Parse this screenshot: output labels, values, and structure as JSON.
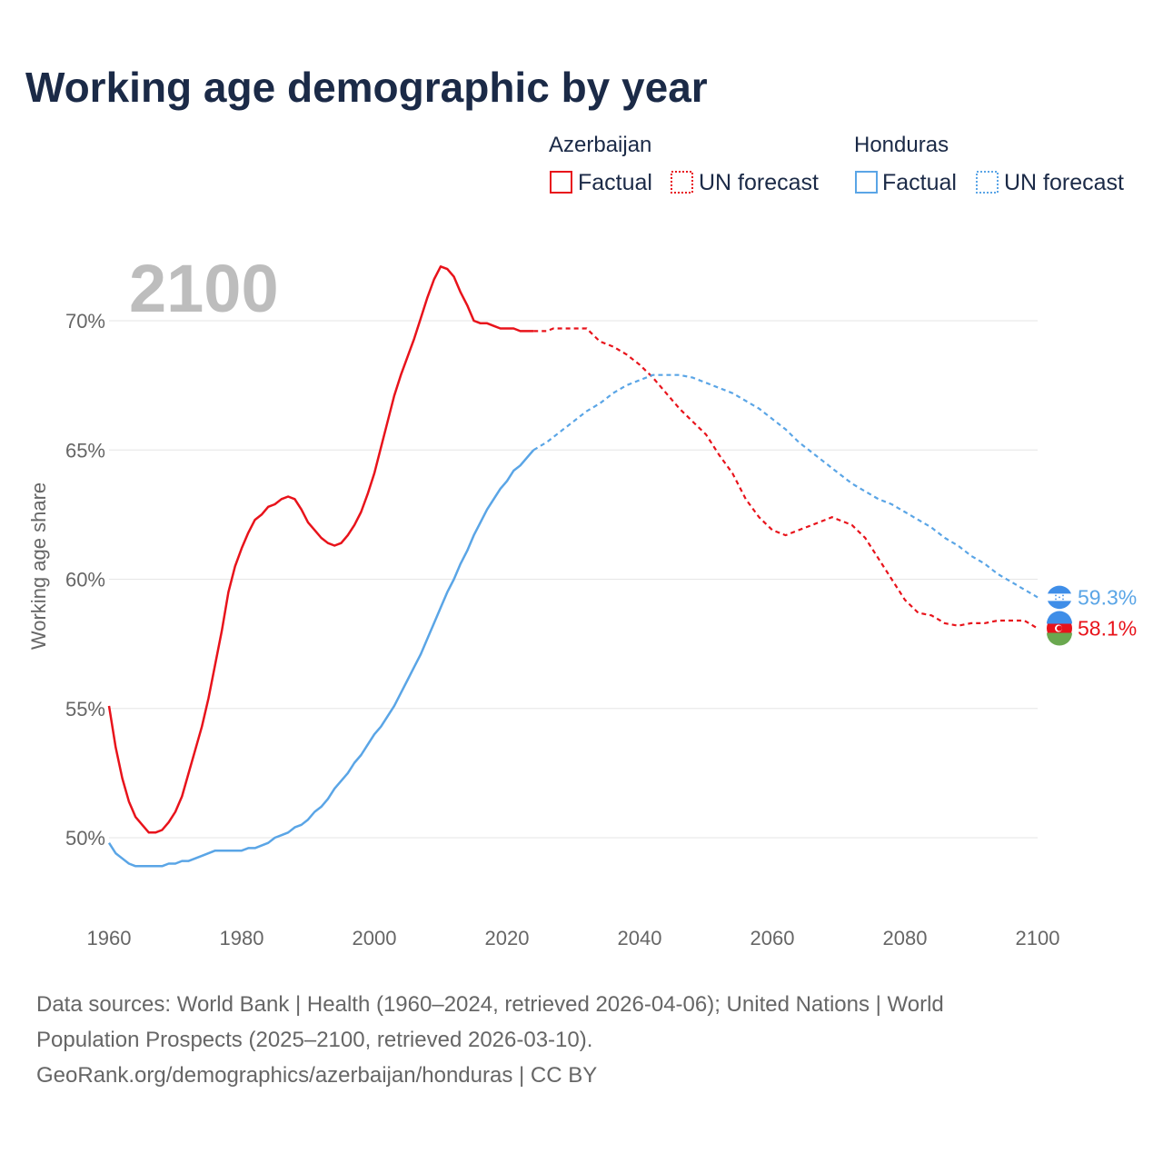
{
  "title": "Working age demographic by year",
  "year_display": "2100",
  "legend": {
    "groups": [
      {
        "name": "Azerbaijan",
        "factual_label": "Factual",
        "forecast_label": "UN forecast",
        "color": "#e8131b"
      },
      {
        "name": "Honduras",
        "factual_label": "Factual",
        "forecast_label": "UN forecast",
        "color": "#5aa5e6"
      }
    ]
  },
  "colors": {
    "azerbaijan": "#e8131b",
    "honduras": "#5aa5e6",
    "grid": "#e6e6e6",
    "axis_text": "#666666",
    "title": "#1b2a47"
  },
  "chart_data": {
    "type": "line",
    "title": "Working age demographic by year",
    "xlabel": "",
    "ylabel": "Working age share",
    "xlim": [
      1960,
      2100
    ],
    "ylim": [
      47.5,
      73
    ],
    "x_ticks": [
      1960,
      1980,
      2000,
      2020,
      2040,
      2060,
      2080,
      2100
    ],
    "y_ticks": [
      50,
      55,
      60,
      65,
      70
    ],
    "y_tick_labels": [
      "50%",
      "55%",
      "60%",
      "65%",
      "70%"
    ],
    "factual_end_year": 2024,
    "series": [
      {
        "name": "Azerbaijan",
        "color": "#e8131b",
        "end_label": "58.1%",
        "points": [
          [
            1960,
            55.1
          ],
          [
            1961,
            53.5
          ],
          [
            1962,
            52.3
          ],
          [
            1963,
            51.4
          ],
          [
            1964,
            50.8
          ],
          [
            1965,
            50.5
          ],
          [
            1966,
            50.2
          ],
          [
            1967,
            50.2
          ],
          [
            1968,
            50.3
          ],
          [
            1969,
            50.6
          ],
          [
            1970,
            51.0
          ],
          [
            1971,
            51.6
          ],
          [
            1972,
            52.5
          ],
          [
            1973,
            53.4
          ],
          [
            1974,
            54.3
          ],
          [
            1975,
            55.4
          ],
          [
            1976,
            56.7
          ],
          [
            1977,
            58.0
          ],
          [
            1978,
            59.5
          ],
          [
            1979,
            60.5
          ],
          [
            1980,
            61.2
          ],
          [
            1981,
            61.8
          ],
          [
            1982,
            62.3
          ],
          [
            1983,
            62.5
          ],
          [
            1984,
            62.8
          ],
          [
            1985,
            62.9
          ],
          [
            1986,
            63.1
          ],
          [
            1987,
            63.2
          ],
          [
            1988,
            63.1
          ],
          [
            1989,
            62.7
          ],
          [
            1990,
            62.2
          ],
          [
            1991,
            61.9
          ],
          [
            1992,
            61.6
          ],
          [
            1993,
            61.4
          ],
          [
            1994,
            61.3
          ],
          [
            1995,
            61.4
          ],
          [
            1996,
            61.7
          ],
          [
            1997,
            62.1
          ],
          [
            1998,
            62.6
          ],
          [
            1999,
            63.3
          ],
          [
            2000,
            64.1
          ],
          [
            2001,
            65.1
          ],
          [
            2002,
            66.1
          ],
          [
            2003,
            67.1
          ],
          [
            2004,
            67.9
          ],
          [
            2005,
            68.6
          ],
          [
            2006,
            69.3
          ],
          [
            2007,
            70.1
          ],
          [
            2008,
            70.9
          ],
          [
            2009,
            71.6
          ],
          [
            2010,
            72.1
          ],
          [
            2011,
            72.0
          ],
          [
            2012,
            71.7
          ],
          [
            2013,
            71.1
          ],
          [
            2014,
            70.6
          ],
          [
            2015,
            70.0
          ],
          [
            2016,
            69.9
          ],
          [
            2017,
            69.9
          ],
          [
            2018,
            69.8
          ],
          [
            2019,
            69.7
          ],
          [
            2020,
            69.7
          ],
          [
            2021,
            69.7
          ],
          [
            2022,
            69.6
          ],
          [
            2023,
            69.6
          ],
          [
            2024,
            69.6
          ],
          [
            2026,
            69.6
          ],
          [
            2027,
            69.7
          ],
          [
            2030,
            69.7
          ],
          [
            2032,
            69.7
          ],
          [
            2034,
            69.2
          ],
          [
            2036,
            69.0
          ],
          [
            2038,
            68.7
          ],
          [
            2040,
            68.3
          ],
          [
            2042,
            67.8
          ],
          [
            2044,
            67.2
          ],
          [
            2046,
            66.6
          ],
          [
            2048,
            66.1
          ],
          [
            2050,
            65.6
          ],
          [
            2052,
            64.8
          ],
          [
            2054,
            64.1
          ],
          [
            2056,
            63.1
          ],
          [
            2058,
            62.4
          ],
          [
            2060,
            61.9
          ],
          [
            2062,
            61.7
          ],
          [
            2064,
            61.9
          ],
          [
            2066,
            62.1
          ],
          [
            2068,
            62.3
          ],
          [
            2069,
            62.4
          ],
          [
            2070,
            62.3
          ],
          [
            2072,
            62.1
          ],
          [
            2074,
            61.6
          ],
          [
            2076,
            60.8
          ],
          [
            2078,
            60.0
          ],
          [
            2080,
            59.2
          ],
          [
            2082,
            58.7
          ],
          [
            2084,
            58.6
          ],
          [
            2086,
            58.3
          ],
          [
            2088,
            58.2
          ],
          [
            2090,
            58.3
          ],
          [
            2092,
            58.3
          ],
          [
            2094,
            58.4
          ],
          [
            2096,
            58.4
          ],
          [
            2098,
            58.4
          ],
          [
            2100,
            58.1
          ]
        ]
      },
      {
        "name": "Honduras",
        "color": "#5aa5e6",
        "end_label": "59.3%",
        "points": [
          [
            1960,
            49.8
          ],
          [
            1961,
            49.4
          ],
          [
            1962,
            49.2
          ],
          [
            1963,
            49.0
          ],
          [
            1964,
            48.9
          ],
          [
            1965,
            48.9
          ],
          [
            1966,
            48.9
          ],
          [
            1968,
            48.9
          ],
          [
            1969,
            49.0
          ],
          [
            1970,
            49.0
          ],
          [
            1971,
            49.1
          ],
          [
            1972,
            49.1
          ],
          [
            1974,
            49.3
          ],
          [
            1976,
            49.5
          ],
          [
            1978,
            49.5
          ],
          [
            1980,
            49.5
          ],
          [
            1981,
            49.6
          ],
          [
            1982,
            49.6
          ],
          [
            1984,
            49.8
          ],
          [
            1985,
            50.0
          ],
          [
            1986,
            50.1
          ],
          [
            1987,
            50.2
          ],
          [
            1988,
            50.4
          ],
          [
            1989,
            50.5
          ],
          [
            1990,
            50.7
          ],
          [
            1991,
            51.0
          ],
          [
            1992,
            51.2
          ],
          [
            1993,
            51.5
          ],
          [
            1994,
            51.9
          ],
          [
            1995,
            52.2
          ],
          [
            1996,
            52.5
          ],
          [
            1997,
            52.9
          ],
          [
            1998,
            53.2
          ],
          [
            1999,
            53.6
          ],
          [
            2000,
            54.0
          ],
          [
            2001,
            54.3
          ],
          [
            2002,
            54.7
          ],
          [
            2003,
            55.1
          ],
          [
            2004,
            55.6
          ],
          [
            2005,
            56.1
          ],
          [
            2006,
            56.6
          ],
          [
            2007,
            57.1
          ],
          [
            2008,
            57.7
          ],
          [
            2009,
            58.3
          ],
          [
            2010,
            58.9
          ],
          [
            2011,
            59.5
          ],
          [
            2012,
            60.0
          ],
          [
            2013,
            60.6
          ],
          [
            2014,
            61.1
          ],
          [
            2015,
            61.7
          ],
          [
            2016,
            62.2
          ],
          [
            2017,
            62.7
          ],
          [
            2018,
            63.1
          ],
          [
            2019,
            63.5
          ],
          [
            2020,
            63.8
          ],
          [
            2021,
            64.2
          ],
          [
            2022,
            64.4
          ],
          [
            2023,
            64.7
          ],
          [
            2024,
            65.0
          ],
          [
            2026,
            65.3
          ],
          [
            2028,
            65.7
          ],
          [
            2030,
            66.1
          ],
          [
            2032,
            66.5
          ],
          [
            2034,
            66.8
          ],
          [
            2036,
            67.2
          ],
          [
            2038,
            67.5
          ],
          [
            2040,
            67.7
          ],
          [
            2042,
            67.9
          ],
          [
            2044,
            67.9
          ],
          [
            2046,
            67.9
          ],
          [
            2048,
            67.8
          ],
          [
            2050,
            67.6
          ],
          [
            2052,
            67.4
          ],
          [
            2054,
            67.2
          ],
          [
            2056,
            66.9
          ],
          [
            2058,
            66.6
          ],
          [
            2060,
            66.2
          ],
          [
            2062,
            65.8
          ],
          [
            2064,
            65.3
          ],
          [
            2066,
            64.9
          ],
          [
            2068,
            64.5
          ],
          [
            2070,
            64.1
          ],
          [
            2072,
            63.7
          ],
          [
            2074,
            63.4
          ],
          [
            2076,
            63.1
          ],
          [
            2078,
            62.9
          ],
          [
            2080,
            62.6
          ],
          [
            2082,
            62.3
          ],
          [
            2084,
            62.0
          ],
          [
            2086,
            61.6
          ],
          [
            2088,
            61.3
          ],
          [
            2090,
            60.9
          ],
          [
            2092,
            60.6
          ],
          [
            2094,
            60.2
          ],
          [
            2096,
            59.9
          ],
          [
            2098,
            59.6
          ],
          [
            2100,
            59.3
          ]
        ]
      }
    ]
  },
  "footer": {
    "line1": "Data sources: World Bank | Health (1960–2024, retrieved 2026-04-06); United Nations | World",
    "line2": "Population Prospects (2025–2100, retrieved 2026-03-10).",
    "line3": "GeoRank.org/demographics/azerbaijan/honduras | CC BY"
  }
}
